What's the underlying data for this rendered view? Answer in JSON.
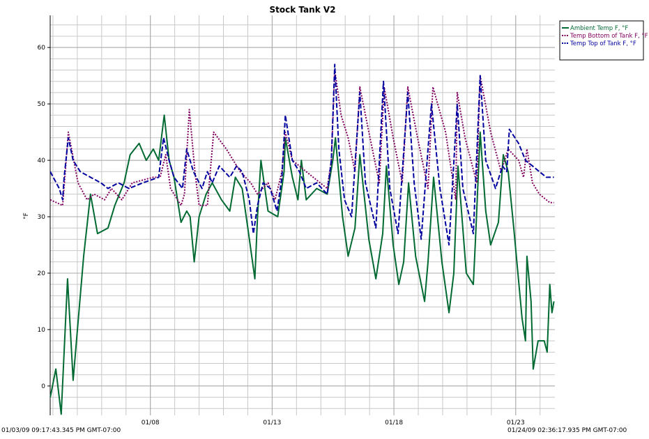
{
  "chart_data": {
    "type": "line",
    "title": "Stock Tank V2",
    "ylabel": "°F",
    "start_label": "01/03/09 09:17:43.345 PM GMT-07:00",
    "end_label": "01/24/09 02:36:17.935 PM GMT-07:00",
    "xlim": [
      3.887,
      24.609
    ],
    "xticks": [
      {
        "value": 8,
        "label": "01/08"
      },
      {
        "value": 13,
        "label": "01/13"
      },
      {
        "value": 18,
        "label": "01/18"
      },
      {
        "value": 23,
        "label": "01/23"
      }
    ],
    "minor_xticks": [
      4,
      5,
      6,
      7,
      8,
      9,
      10,
      11,
      12,
      13,
      14,
      15,
      16,
      17,
      18,
      19,
      20,
      21,
      22,
      23,
      24
    ],
    "ylim": [
      -5.2,
      65.7
    ],
    "yticks": [
      0,
      10,
      20,
      30,
      40,
      50,
      60
    ],
    "minor_yticks": [
      -4,
      -2,
      0,
      2,
      4,
      6,
      8,
      10,
      12,
      14,
      16,
      18,
      20,
      22,
      24,
      26,
      28,
      30,
      32,
      34,
      36,
      38,
      40,
      42,
      44,
      46,
      48,
      50,
      52,
      54,
      56,
      58,
      60,
      62,
      64
    ],
    "grid": true,
    "legend": "top-right",
    "series": [
      {
        "name": "Ambient Temp F, °F",
        "color": "#006a32",
        "style": "solid",
        "x": [
          3.89,
          4.12,
          4.34,
          4.6,
          4.83,
          5.26,
          5.54,
          5.83,
          6.26,
          6.54,
          6.92,
          7.17,
          7.54,
          7.83,
          8.12,
          8.34,
          8.57,
          8.77,
          8.97,
          9.26,
          9.49,
          9.63,
          9.8,
          10.0,
          10.29,
          10.54,
          10.92,
          11.26,
          11.49,
          11.77,
          12.0,
          12.29,
          12.4,
          12.54,
          12.83,
          13.23,
          13.49,
          13.54,
          13.83,
          14.06,
          14.2,
          14.4,
          14.83,
          15.26,
          15.49,
          15.6,
          15.89,
          16.12,
          16.4,
          16.6,
          16.97,
          17.26,
          17.54,
          17.69,
          17.97,
          18.2,
          18.4,
          18.6,
          18.89,
          19.26,
          19.4,
          19.63,
          19.97,
          20.26,
          20.46,
          20.63,
          20.97,
          21.26,
          21.35,
          21.54,
          21.77,
          21.97,
          22.29,
          22.49,
          22.69,
          22.92,
          23.26,
          23.4,
          23.46,
          23.63,
          23.72,
          23.92,
          24.17,
          24.29,
          24.4,
          24.49,
          24.57
        ],
        "values": [
          -2,
          3,
          -5,
          19,
          1,
          23,
          34,
          27,
          28,
          32,
          36,
          41,
          43,
          40,
          42,
          40,
          48,
          40,
          37,
          29,
          31,
          30,
          22,
          30,
          34,
          36,
          33,
          31,
          37,
          35,
          28,
          19,
          30,
          40,
          31,
          30,
          38,
          44,
          37,
          33,
          40,
          33,
          35,
          34,
          40,
          44,
          30,
          23,
          28,
          41,
          26,
          19,
          27,
          39,
          25,
          18,
          22,
          36,
          23,
          15,
          22,
          37,
          22,
          13,
          20,
          39,
          20,
          18,
          26,
          45,
          31,
          25,
          29,
          41,
          38,
          28,
          12,
          8,
          23,
          15,
          3,
          8,
          8,
          6,
          18,
          13,
          15
        ]
      },
      {
        "name": "Temp Bottom of Tank F, °F",
        "color": "#800060",
        "style": "dotted",
        "x": [
          3.89,
          4.4,
          4.63,
          5.03,
          5.4,
          5.69,
          6.12,
          6.4,
          6.83,
          7.26,
          8.12,
          8.4,
          8.63,
          8.83,
          9.26,
          9.4,
          9.6,
          9.83,
          10.0,
          10.34,
          10.6,
          11.12,
          11.69,
          12.12,
          12.4,
          12.83,
          13.12,
          13.4,
          13.54,
          13.83,
          14.4,
          14.97,
          15.26,
          15.43,
          15.57,
          15.83,
          16.12,
          16.4,
          16.6,
          16.97,
          17.4,
          17.6,
          17.97,
          18.34,
          18.57,
          18.97,
          19.4,
          19.6,
          20.12,
          20.54,
          20.6,
          20.92,
          21.4,
          21.54,
          21.97,
          22.4,
          22.69,
          23.12,
          23.32,
          23.46,
          23.69,
          23.97,
          24.4,
          24.57
        ],
        "values": [
          33,
          32,
          45,
          36,
          33,
          34,
          33,
          35,
          33,
          36,
          37,
          37,
          41,
          35,
          32,
          34,
          49,
          38,
          32,
          32,
          45,
          42,
          38,
          36,
          34,
          36,
          33,
          38,
          45,
          40,
          38,
          36,
          35,
          40,
          56,
          48,
          44,
          38,
          53,
          45,
          36,
          53,
          44,
          36,
          53,
          44,
          35,
          53,
          45,
          33,
          52,
          44,
          36,
          55,
          45,
          38,
          42,
          40,
          37,
          42,
          36,
          34,
          32.5,
          32.5
        ]
      },
      {
        "name": "Temp Top of Tank F, °F",
        "color": "#0000a0",
        "style": "dashed",
        "x": [
          3.89,
          4.26,
          4.4,
          4.46,
          4.63,
          4.83,
          5.12,
          5.54,
          5.97,
          6.26,
          6.69,
          7.12,
          7.69,
          8.34,
          8.54,
          8.77,
          8.97,
          9.32,
          9.49,
          9.77,
          10.12,
          10.34,
          10.54,
          10.83,
          11.26,
          11.54,
          11.77,
          12.06,
          12.23,
          12.4,
          12.63,
          12.92,
          13.2,
          13.4,
          13.54,
          13.83,
          14.12,
          14.4,
          14.83,
          15.26,
          15.43,
          15.57,
          15.74,
          15.97,
          16.26,
          16.6,
          16.83,
          17.26,
          17.57,
          17.83,
          18.17,
          18.57,
          18.83,
          19.12,
          19.54,
          19.89,
          20.26,
          20.6,
          20.83,
          21.26,
          21.54,
          21.77,
          22.17,
          22.46,
          22.63,
          22.74,
          23.12,
          23.4,
          23.69,
          23.97,
          24.26,
          24.57
        ],
        "values": [
          38,
          35,
          33,
          37,
          44,
          40,
          38,
          37,
          36,
          35,
          36,
          35,
          36,
          37,
          44,
          40,
          37,
          35,
          42,
          38,
          35,
          38,
          36,
          39,
          37,
          39,
          38,
          33,
          27,
          32,
          36,
          35,
          31,
          37,
          48,
          40,
          38,
          35,
          36,
          34,
          40,
          57,
          42,
          33,
          30,
          52,
          36,
          28,
          54,
          35,
          27,
          52,
          36,
          26,
          50,
          35,
          25,
          50,
          35,
          27,
          55,
          40,
          35,
          39,
          38,
          45.5,
          43,
          40,
          39,
          38,
          37,
          37
        ]
      }
    ]
  }
}
